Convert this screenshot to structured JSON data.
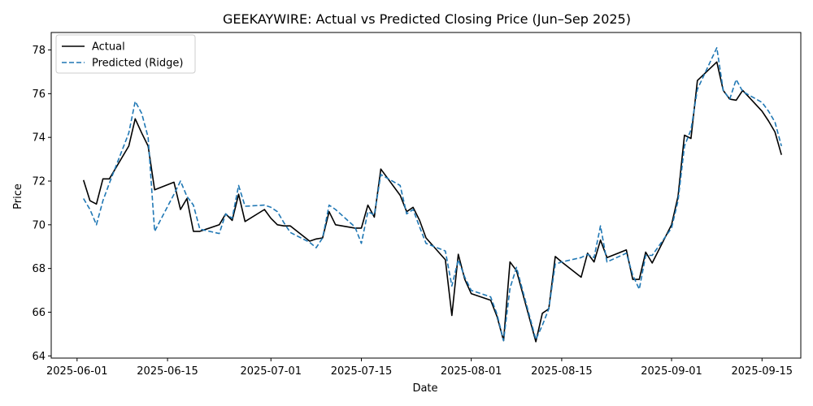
{
  "chart_data": {
    "type": "line",
    "title": "GEEKAYWIRE: Actual vs Predicted Closing Price (Jun–Sep 2025)",
    "xlabel": "Date",
    "ylabel": "Price",
    "ylim": [
      63.9,
      78.8
    ],
    "xlim": [
      "2025-05-28",
      "2025-09-21"
    ],
    "x_ticks": [
      "2025-06-01",
      "2025-06-15",
      "2025-07-01",
      "2025-07-15",
      "2025-08-01",
      "2025-08-15",
      "2025-09-01",
      "2025-09-15"
    ],
    "y_ticks": [
      64,
      66,
      68,
      70,
      72,
      74,
      76,
      78
    ],
    "grid": false,
    "legend_position": "upper left",
    "x": [
      "2025-06-02",
      "2025-06-03",
      "2025-06-04",
      "2025-06-05",
      "2025-06-06",
      "2025-06-09",
      "2025-06-10",
      "2025-06-11",
      "2025-06-12",
      "2025-06-13",
      "2025-06-16",
      "2025-06-17",
      "2025-06-18",
      "2025-06-19",
      "2025-06-20",
      "2025-06-23",
      "2025-06-24",
      "2025-06-25",
      "2025-06-26",
      "2025-06-27",
      "2025-06-30",
      "2025-07-01",
      "2025-07-02",
      "2025-07-03",
      "2025-07-04",
      "2025-07-07",
      "2025-07-08",
      "2025-07-09",
      "2025-07-10",
      "2025-07-11",
      "2025-07-14",
      "2025-07-15",
      "2025-07-16",
      "2025-07-17",
      "2025-07-18",
      "2025-07-21",
      "2025-07-22",
      "2025-07-23",
      "2025-07-24",
      "2025-07-25",
      "2025-07-28",
      "2025-07-29",
      "2025-07-30",
      "2025-07-31",
      "2025-08-01",
      "2025-08-04",
      "2025-08-05",
      "2025-08-06",
      "2025-08-07",
      "2025-08-08",
      "2025-08-11",
      "2025-08-12",
      "2025-08-13",
      "2025-08-14",
      "2025-08-15",
      "2025-08-18",
      "2025-08-19",
      "2025-08-20",
      "2025-08-21",
      "2025-08-22",
      "2025-08-25",
      "2025-08-26",
      "2025-08-27",
      "2025-08-28",
      "2025-08-29",
      "2025-09-01",
      "2025-09-02",
      "2025-09-03",
      "2025-09-04",
      "2025-09-05",
      "2025-09-08",
      "2025-09-09",
      "2025-09-10",
      "2025-09-11",
      "2025-09-12",
      "2025-09-15",
      "2025-09-16",
      "2025-09-17",
      "2025-09-18"
    ],
    "series": [
      {
        "name": "Actual",
        "color": "#000000",
        "dash": "solid",
        "values": [
          72.05,
          71.1,
          70.95,
          72.1,
          72.1,
          73.6,
          74.85,
          74.2,
          73.6,
          71.6,
          71.95,
          70.7,
          71.2,
          69.7,
          69.7,
          70.0,
          70.5,
          70.2,
          71.4,
          70.15,
          70.7,
          70.3,
          70.0,
          69.95,
          69.95,
          69.25,
          69.35,
          69.4,
          70.6,
          70.0,
          69.85,
          69.85,
          70.9,
          70.35,
          72.55,
          71.35,
          70.6,
          70.8,
          70.2,
          69.4,
          68.4,
          65.85,
          68.65,
          67.5,
          66.85,
          66.55,
          65.8,
          64.7,
          68.3,
          67.9,
          64.65,
          65.95,
          66.15,
          68.55,
          68.3,
          67.6,
          68.7,
          68.3,
          69.3,
          68.5,
          68.85,
          67.5,
          67.5,
          68.75,
          68.25,
          70.0,
          71.3,
          74.1,
          73.95,
          76.6,
          77.45,
          76.15,
          75.75,
          75.7,
          76.15,
          75.2,
          74.75,
          74.25,
          73.2
        ]
      },
      {
        "name": "Predicted (Ridge)",
        "color": "#1f77b4",
        "dash": "dashed",
        "values": [
          71.2,
          70.7,
          70.0,
          71.1,
          71.9,
          74.2,
          75.65,
          75.1,
          74.0,
          69.7,
          71.4,
          72.0,
          71.3,
          70.9,
          69.8,
          69.6,
          70.5,
          70.3,
          71.8,
          70.85,
          70.9,
          70.8,
          70.6,
          70.1,
          69.65,
          69.2,
          68.95,
          69.4,
          70.9,
          70.7,
          69.9,
          69.15,
          70.6,
          70.45,
          72.3,
          71.8,
          70.5,
          70.7,
          69.9,
          69.15,
          68.8,
          67.2,
          68.4,
          67.6,
          67.0,
          66.7,
          65.9,
          64.7,
          67.1,
          68.05,
          64.75,
          65.4,
          66.15,
          68.2,
          68.3,
          68.5,
          68.65,
          68.5,
          69.95,
          68.3,
          68.7,
          67.7,
          67.05,
          68.6,
          68.6,
          69.85,
          71.1,
          73.6,
          74.35,
          76.2,
          78.1,
          76.15,
          75.75,
          76.65,
          76.1,
          75.6,
          75.2,
          74.7,
          73.6
        ]
      }
    ]
  }
}
